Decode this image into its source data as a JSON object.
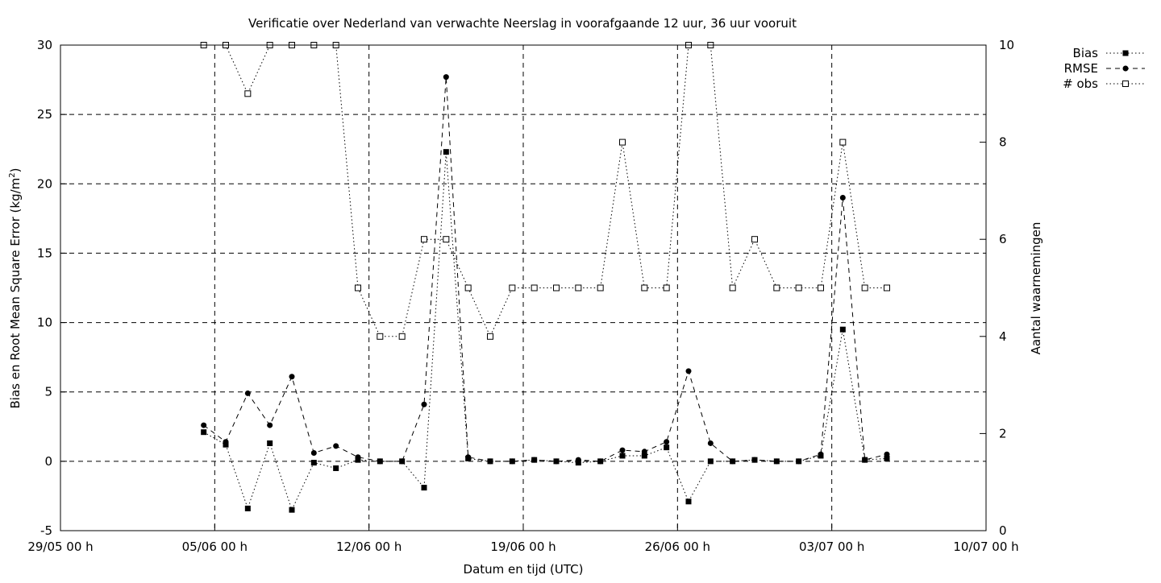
{
  "chart_data": {
    "type": "line",
    "title": "Verificatie over Nederland van verwachte Neerslag in voorafgaande 12 uur, 36 uur vooruit",
    "xlabel": "Datum en tijd (UTC)",
    "ylabel": "Bias en Root Mean Square Error (kg/m",
    "ylabel_sup": "2",
    "ylabel_close": ")",
    "y2label": "Aantal waarnemingen",
    "xlim": [
      "2019-05-29T00:00",
      "2019-07-10T00:00"
    ],
    "xticks": [
      {
        "label": "29/05 00 h",
        "t": "2019-05-29T00:00"
      },
      {
        "label": "05/06 00 h",
        "t": "2019-06-05T00:00"
      },
      {
        "label": "12/06 00 h",
        "t": "2019-06-12T00:00"
      },
      {
        "label": "19/06 00 h",
        "t": "2019-06-19T00:00"
      },
      {
        "label": "26/06 00 h",
        "t": "2019-06-26T00:00"
      },
      {
        "label": "03/07 00 h",
        "t": "2019-07-03T00:00"
      },
      {
        "label": "10/07 00 h",
        "t": "2019-07-10T00:00"
      }
    ],
    "ylim": [
      -5,
      30
    ],
    "yticks": [
      "-5",
      "0",
      "5",
      "10",
      "15",
      "20",
      "25",
      "30"
    ],
    "y2lim": [
      0,
      10
    ],
    "y2ticks": [
      "0",
      "2",
      "4",
      "6",
      "8",
      "10"
    ],
    "grid": true,
    "legend_position": "outside top-right",
    "times": [
      "2019-06-04T12:00",
      "2019-06-05T12:00",
      "2019-06-06T12:00",
      "2019-06-07T12:00",
      "2019-06-08T12:00",
      "2019-06-09T12:00",
      "2019-06-10T12:00",
      "2019-06-11T12:00",
      "2019-06-12T12:00",
      "2019-06-13T12:00",
      "2019-06-14T12:00",
      "2019-06-15T12:00",
      "2019-06-16T12:00",
      "2019-06-17T12:00",
      "2019-06-18T12:00",
      "2019-06-19T12:00",
      "2019-06-20T12:00",
      "2019-06-21T12:00",
      "2019-06-22T12:00",
      "2019-06-23T12:00",
      "2019-06-24T12:00",
      "2019-06-25T12:00",
      "2019-06-26T12:00",
      "2019-06-27T12:00",
      "2019-06-28T12:00",
      "2019-06-29T12:00",
      "2019-06-30T12:00",
      "2019-07-01T12:00",
      "2019-07-02T12:00",
      "2019-07-03T12:00",
      "2019-07-04T12:00",
      "2019-07-05T12:00"
    ],
    "series": [
      {
        "name": "Bias",
        "axis": "y",
        "line_style": "dotted",
        "marker": "filled-square",
        "values": [
          2.1,
          1.2,
          -3.4,
          1.3,
          -3.5,
          -0.1,
          -0.5,
          0.1,
          0.0,
          0.0,
          -1.9,
          22.3,
          0.2,
          0.0,
          0.0,
          0.1,
          0.0,
          -0.1,
          0.0,
          0.4,
          0.4,
          1.0,
          -2.9,
          0.0,
          0.0,
          0.1,
          0.0,
          0.0,
          0.4,
          9.5,
          0.1,
          0.2
        ]
      },
      {
        "name": "RMSE",
        "axis": "y",
        "line_style": "dashed",
        "marker": "filled-circle",
        "values": [
          2.6,
          1.4,
          4.9,
          2.6,
          6.1,
          0.6,
          1.1,
          0.3,
          0.0,
          0.0,
          4.1,
          27.7,
          0.3,
          0.0,
          0.0,
          0.1,
          0.0,
          0.1,
          0.0,
          0.8,
          0.7,
          1.4,
          6.5,
          1.3,
          0.0,
          0.1,
          0.0,
          0.0,
          0.5,
          19.0,
          0.1,
          0.5
        ]
      },
      {
        "name": "# obs",
        "axis": "y2",
        "line_style": "dotted",
        "marker": "open-square",
        "values": [
          10,
          10,
          9,
          10,
          10,
          10,
          10,
          5,
          4,
          4,
          6,
          6,
          5,
          4,
          5,
          5,
          5,
          5,
          5,
          8,
          5,
          5,
          10,
          10,
          5,
          6,
          5,
          5,
          5,
          8,
          5,
          5
        ]
      }
    ]
  }
}
